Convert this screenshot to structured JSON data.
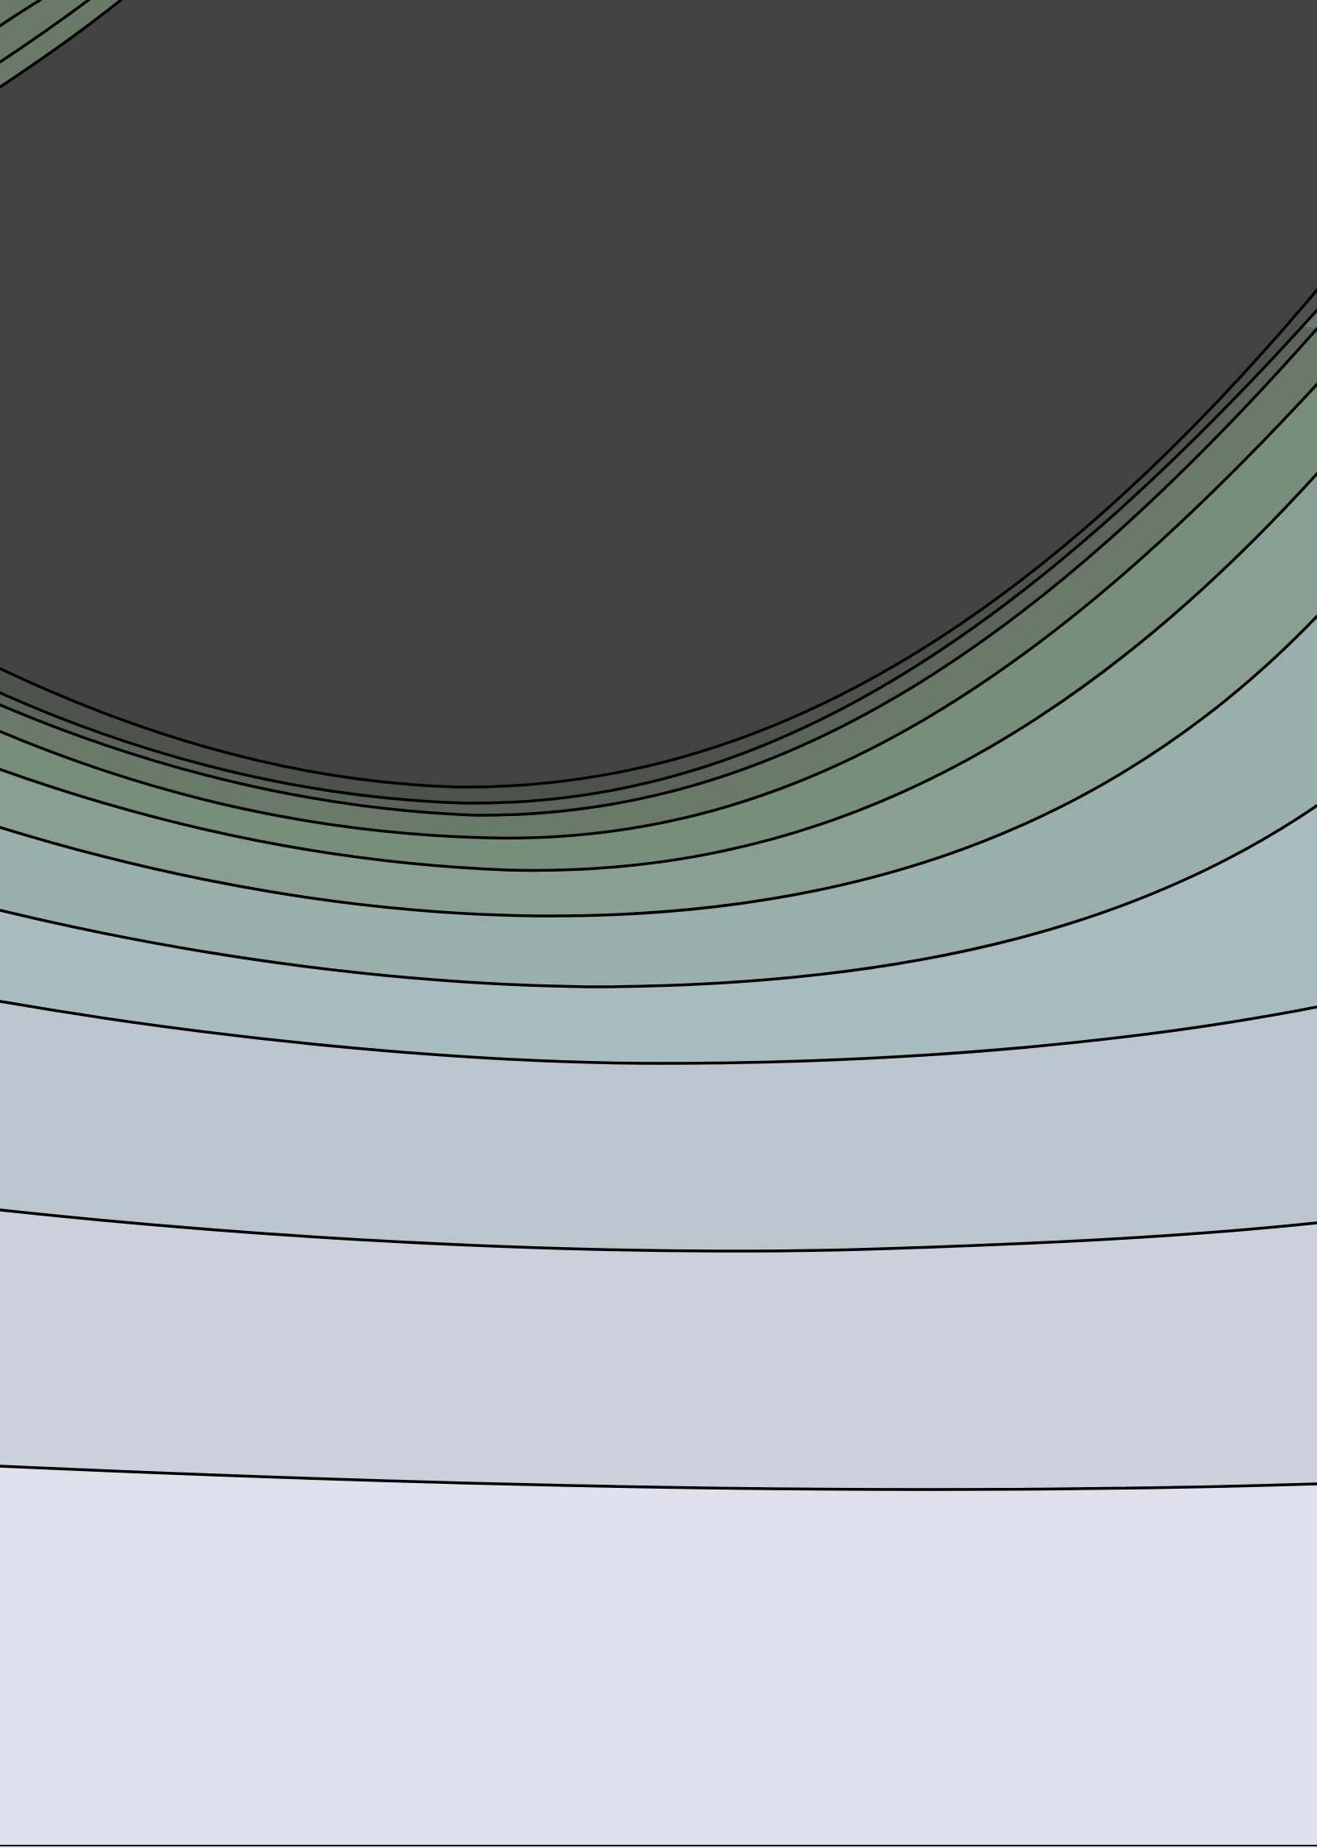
{
  "chart_data": {
    "type": "contour",
    "title": "",
    "xlabel": "",
    "ylabel": "",
    "grid": false,
    "legend": "none",
    "line_color": "#000000",
    "background_fill": "#dfe0ec",
    "levels": [
      {
        "index": 1,
        "fill": "#dfe0ec"
      },
      {
        "index": 2,
        "fill": "#cbd0dd"
      },
      {
        "index": 3,
        "fill": "#bac5cd"
      },
      {
        "index": 4,
        "fill": "#a8bcbf"
      },
      {
        "index": 5,
        "fill": "#98b0a9"
      },
      {
        "index": 6,
        "fill": "#889f91"
      },
      {
        "index": 7,
        "fill": "#778e7b"
      },
      {
        "index": 8,
        "fill": "#697a68"
      },
      {
        "index": 9,
        "fill": "#5c6358"
      },
      {
        "index": 10,
        "fill": "#4f514c"
      },
      {
        "index": 11,
        "fill": "#434343"
      }
    ]
  }
}
